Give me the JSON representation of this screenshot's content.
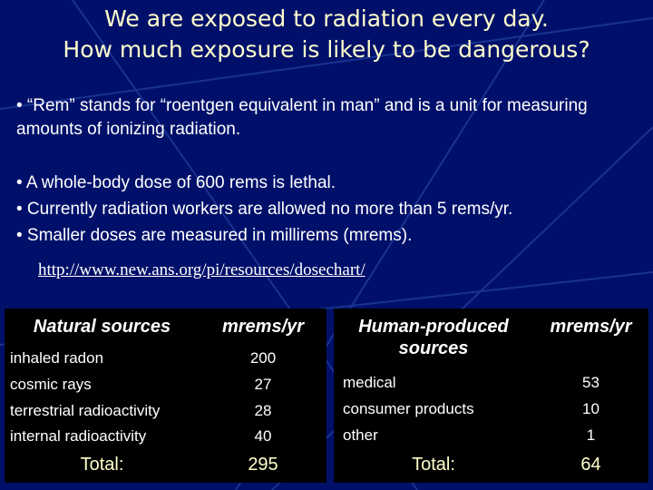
{
  "title": [
    "We are exposed to radiation every day.",
    "How much exposure is likely to be dangerous?"
  ],
  "bullets": [
    "• “Rem” stands for “roentgen equivalent in man” and is a unit for measuring amounts of ionizing radiation.",
    "• A whole-body dose of 600 rems is lethal.",
    "• Currently radiation workers are allowed no more than 5 rems/yr.",
    "• Smaller doses are measured in millirems (mrems)."
  ],
  "link": "http://www.new.ans.org/pi/resources/dosechart/",
  "natural_table": {
    "headers": [
      "Natural sources",
      "mrems/yr"
    ],
    "rows": [
      [
        "inhaled radon",
        200
      ],
      [
        "cosmic rays",
        27
      ],
      [
        "terrestrial radioactivity",
        28
      ],
      [
        "internal radioactivity",
        40
      ]
    ],
    "total": [
      "Total:",
      295
    ]
  },
  "human_table": {
    "headers": [
      "Human-produced sources",
      "mrems/yr"
    ],
    "rows": [
      [
        "medical",
        53
      ],
      [
        "consumer products",
        10
      ],
      [
        "other",
        1
      ]
    ],
    "total": [
      "Total:",
      64
    ]
  }
}
